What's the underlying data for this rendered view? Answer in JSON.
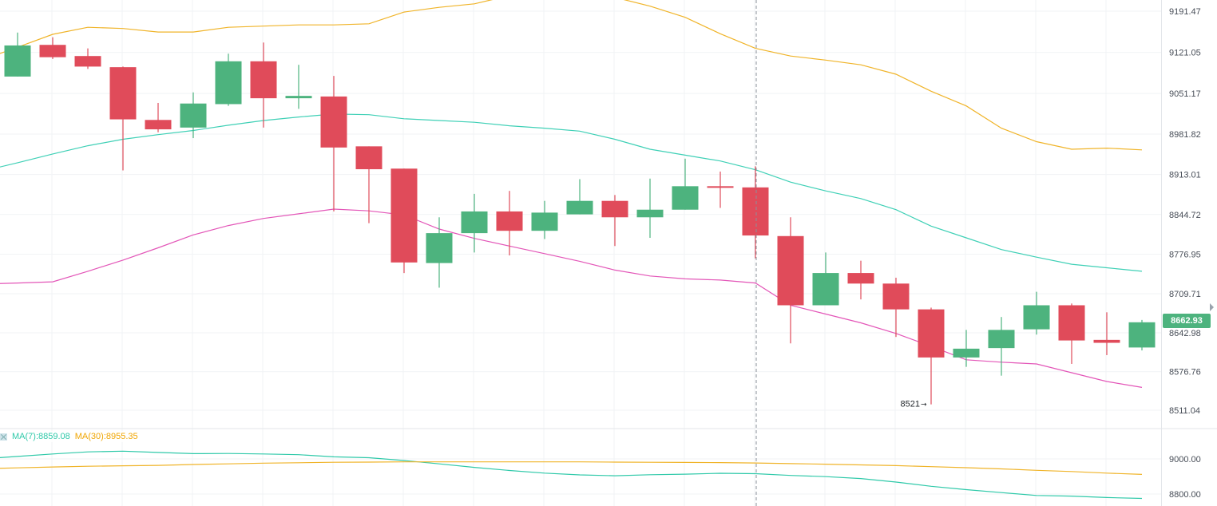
{
  "chart_data": [
    {
      "type": "candlestick",
      "title": "",
      "ylim": [
        8480,
        9215
      ],
      "y_ticks": [
        9191.47,
        9121.05,
        9051.17,
        8981.82,
        8913.01,
        8844.72,
        8776.95,
        8709.71,
        8642.98,
        8576.76,
        8511.04
      ],
      "last_price": 8662.93,
      "last_price_label": "8662.93",
      "low_marker_label": "8521",
      "low_marker_arrow": "→",
      "low_marker_index": 26,
      "grid": true,
      "crosshair_index": 21,
      "candles": [
        {
          "open": 9080,
          "high": 9155,
          "low": 9080,
          "close": 9133
        },
        {
          "open": 9134,
          "high": 9147,
          "low": 9110,
          "close": 9113
        },
        {
          "open": 9115,
          "high": 9128,
          "low": 9093,
          "close": 9097
        },
        {
          "open": 9096,
          "high": 9097,
          "low": 8920,
          "close": 9007
        },
        {
          "open": 9006,
          "high": 9035,
          "low": 8985,
          "close": 8990
        },
        {
          "open": 8993,
          "high": 9053,
          "low": 8975,
          "close": 9034
        },
        {
          "open": 9033,
          "high": 9119,
          "low": 9030,
          "close": 9106
        },
        {
          "open": 9106,
          "high": 9138,
          "low": 8993,
          "close": 9043
        },
        {
          "open": 9043,
          "high": 9100,
          "low": 9025,
          "close": 9047
        },
        {
          "open": 9046,
          "high": 9081,
          "low": 8850,
          "close": 8959
        },
        {
          "open": 8961,
          "high": 8961,
          "low": 8830,
          "close": 8922
        },
        {
          "open": 8923,
          "high": 8923,
          "low": 8745,
          "close": 8763
        },
        {
          "open": 8762,
          "high": 8840,
          "low": 8720,
          "close": 8813
        },
        {
          "open": 8813,
          "high": 8880,
          "low": 8780,
          "close": 8850
        },
        {
          "open": 8850,
          "high": 8885,
          "low": 8775,
          "close": 8817
        },
        {
          "open": 8817,
          "high": 8868,
          "low": 8803,
          "close": 8848
        },
        {
          "open": 8845,
          "high": 8905,
          "low": 8845,
          "close": 8868
        },
        {
          "open": 8868,
          "high": 8878,
          "low": 8791,
          "close": 8840
        },
        {
          "open": 8840,
          "high": 8906,
          "low": 8805,
          "close": 8853
        },
        {
          "open": 8853,
          "high": 8940,
          "low": 8853,
          "close": 8893
        },
        {
          "open": 8893,
          "high": 8918,
          "low": 8856,
          "close": 8891
        },
        {
          "open": 8891,
          "high": 8927,
          "low": 8770,
          "close": 8809
        },
        {
          "open": 8808,
          "high": 8840,
          "low": 8625,
          "close": 8690
        },
        {
          "open": 8690,
          "high": 8780,
          "low": 8690,
          "close": 8745
        },
        {
          "open": 8745,
          "high": 8766,
          "low": 8700,
          "close": 8727
        },
        {
          "open": 8727,
          "high": 8737,
          "low": 8636,
          "close": 8683
        },
        {
          "open": 8683,
          "high": 8686,
          "low": 8521,
          "close": 8601
        },
        {
          "open": 8601,
          "high": 8648,
          "low": 8585,
          "close": 8616
        },
        {
          "open": 8617,
          "high": 8670,
          "low": 8570,
          "close": 8648
        },
        {
          "open": 8649,
          "high": 8713,
          "low": 8640,
          "close": 8690
        },
        {
          "open": 8690,
          "high": 8693,
          "low": 8590,
          "close": 8630
        },
        {
          "open": 8631,
          "high": 8678,
          "low": 8605,
          "close": 8626
        },
        {
          "open": 8618,
          "high": 8665,
          "low": 8613,
          "close": 8661
        }
      ],
      "bands": [
        {
          "name": "upper",
          "color": "#f0b429",
          "values": [
            9130,
            9152,
            9164,
            9162,
            9156,
            9156,
            9164,
            9166,
            9168,
            9168,
            9170,
            9190,
            9198,
            9204,
            9218,
            9228,
            9230,
            9215,
            9200,
            9181,
            9153,
            9128,
            9115,
            9108,
            9100,
            9084,
            9055,
            9030,
            8992,
            8969,
            8956,
            8958,
            8955
          ]
        },
        {
          "name": "middle",
          "color": "#3fd0b6",
          "values": [
            8933,
            8948,
            8962,
            8973,
            8981,
            8988,
            8997,
            9005,
            9011,
            9016,
            9015,
            9008,
            9005,
            9002,
            8996,
            8992,
            8987,
            8973,
            8956,
            8946,
            8936,
            8921,
            8900,
            8885,
            8872,
            8853,
            8825,
            8805,
            8785,
            8772,
            8760,
            8754,
            8748
          ]
        },
        {
          "name": "lower",
          "color": "#e356b8",
          "values": [
            8728,
            8730,
            8748,
            8767,
            8788,
            8810,
            8826,
            8838,
            8846,
            8854,
            8851,
            8844,
            8820,
            8804,
            8791,
            8778,
            8765,
            8750,
            8740,
            8735,
            8733,
            8728,
            8690,
            8675,
            8660,
            8642,
            8620,
            8597,
            8593,
            8590,
            8575,
            8560,
            8550
          ]
        }
      ]
    },
    {
      "type": "line",
      "title": "",
      "ylim": [
        8760,
        9080
      ],
      "y_ticks": [
        9000.0,
        8800.0
      ],
      "y_tick_labels": [
        "9000.00",
        "8800.00"
      ],
      "legend_placement": "top-left",
      "series": [
        {
          "name": "MA(7):8859.08",
          "color": "#2fc9a9",
          "values": [
            9014,
            9028,
            9040,
            9044,
            9037,
            9030,
            9031,
            9028,
            9024,
            9012,
            9007,
            8991,
            8972,
            8952,
            8934,
            8919,
            8909,
            8904,
            8910,
            8913,
            8918,
            8916,
            8906,
            8899,
            8888,
            8868,
            8844,
            8825,
            8808,
            8792,
            8788,
            8780,
            8775
          ]
        },
        {
          "name": "MA(30):8955.35",
          "color": "#f0b429",
          "values": [
            8949,
            8954,
            8958,
            8961,
            8963,
            8968,
            8972,
            8976,
            8978,
            8981,
            8982,
            8983,
            8983,
            8983,
            8983,
            8983,
            8983,
            8982,
            8981,
            8980,
            8979,
            8977,
            8973,
            8970,
            8966,
            8962,
            8956,
            8950,
            8943,
            8935,
            8928,
            8919,
            8912
          ]
        }
      ]
    }
  ],
  "legend": {
    "ma7": "MA(7):8859.08",
    "ma30": "MA(30):8955.35"
  }
}
